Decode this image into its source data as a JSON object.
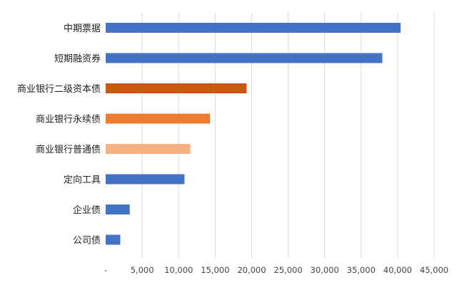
{
  "chart_data": {
    "type": "bar",
    "orientation": "horizontal",
    "title": "",
    "xlabel": "",
    "ylabel": "",
    "categories": [
      "中期票据",
      "短期融资券",
      "商业银行二级资本债",
      "商业银行永续债",
      "商业银行普通债",
      "定向工具",
      "企业债",
      "公司债"
    ],
    "values": [
      40400,
      37900,
      19300,
      14300,
      11600,
      10800,
      3300,
      2000
    ],
    "bar_colors": [
      "#4472c4",
      "#4472c4",
      "#c55a11",
      "#ed7d31",
      "#f4b183",
      "#4472c4",
      "#4472c4",
      "#4472c4"
    ],
    "xlim": [
      0,
      45000
    ],
    "x_ticks": [
      0,
      5000,
      10000,
      15000,
      20000,
      25000,
      30000,
      35000,
      40000,
      45000
    ],
    "x_tick_labels": [
      "-",
      "5,000",
      "10,000",
      "15,000",
      "20,000",
      "25,000",
      "30,000",
      "35,000",
      "40,000",
      "45,000"
    ],
    "grid": true,
    "legend": "none"
  }
}
